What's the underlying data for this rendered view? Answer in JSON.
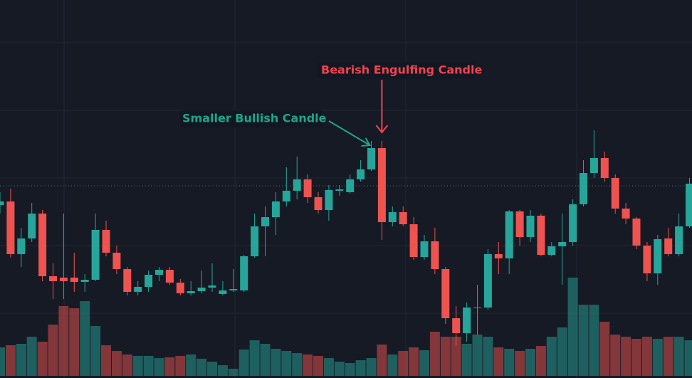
{
  "chart_data": {
    "type": "candlestick",
    "annotations": [
      {
        "text": "Bearish Engulfing Candle",
        "color": "#f0434f",
        "candle": 36
      },
      {
        "text": "Smaller Bullish Candle",
        "color": "#1fa58c",
        "candle": 35
      }
    ],
    "up_color": "#26a69a",
    "down_color": "#ef5350",
    "ylim": [
      0,
      531
    ],
    "vlim": [
      0,
      150
    ],
    "open": [
      243,
      248,
      174,
      196,
      231,
      143,
      141,
      141,
      135,
      138,
      208,
      176,
      153,
      121,
      128,
      145,
      152,
      134,
      119,
      122,
      127,
      118,
      123,
      123,
      171,
      213,
      226,
      248,
      263,
      279,
      254,
      236,
      263,
      261,
      279,
      293,
      323,
      219,
      233,
      216,
      170,
      192,
      153,
      84,
      63,
      98,
      99,
      174,
      168,
      234,
      198,
      228,
      173,
      185,
      191,
      244,
      288,
      309,
      281,
      238,
      224,
      186,
      147,
      196,
      174,
      213
    ],
    "high": [
      261,
      266,
      211,
      246,
      236,
      161,
      231,
      176,
      146,
      231,
      221,
      186,
      156,
      136,
      151,
      156,
      156,
      139,
      136,
      151,
      161,
      136,
      153,
      173,
      231,
      241,
      261,
      296,
      311,
      286,
      261,
      271,
      271,
      286,
      306,
      333,
      333,
      241,
      241,
      226,
      201,
      211,
      156,
      101,
      106,
      131,
      181,
      191,
      236,
      236,
      236,
      231,
      191,
      231,
      251,
      306,
      348,
      318,
      286,
      246,
      226,
      191,
      201,
      211,
      231,
      281
    ],
    "low": [
      231,
      169,
      156,
      191,
      136,
      111,
      111,
      121,
      121,
      136,
      171,
      146,
      116,
      116,
      121,
      136,
      131,
      116,
      116,
      119,
      121,
      116,
      121,
      121,
      169,
      171,
      201,
      241,
      251,
      246,
      231,
      221,
      256,
      259,
      276,
      291,
      194,
      213,
      213,
      166,
      166,
      146,
      76,
      46,
      51,
      61,
      96,
      146,
      146,
      186,
      191,
      171,
      171,
      131,
      186,
      241,
      281,
      276,
      231,
      216,
      181,
      136,
      131,
      171,
      171,
      211
    ],
    "close": [
      248,
      174,
      196,
      231,
      143,
      136,
      136,
      135,
      138,
      208,
      176,
      153,
      121,
      128,
      145,
      152,
      134,
      119,
      122,
      127,
      130,
      123,
      125,
      171,
      213,
      226,
      248,
      263,
      279,
      254,
      236,
      264,
      265,
      279,
      293,
      323,
      219,
      233,
      216,
      170,
      192,
      153,
      84,
      63,
      99,
      99,
      174,
      168,
      234,
      198,
      228,
      173,
      185,
      191,
      244,
      288,
      309,
      281,
      238,
      224,
      186,
      147,
      195,
      174,
      213,
      273
    ],
    "volume": [
      40,
      43,
      45,
      55,
      48,
      72,
      98,
      95,
      105,
      70,
      43,
      35,
      30,
      28,
      28,
      25,
      26,
      28,
      30,
      24,
      20,
      15,
      10,
      37,
      50,
      45,
      38,
      35,
      32,
      30,
      28,
      25,
      20,
      18,
      22,
      25,
      44,
      30,
      35,
      40,
      36,
      62,
      55,
      55,
      45,
      58,
      55,
      40,
      38,
      35,
      38,
      42,
      55,
      68,
      138,
      100,
      100,
      76,
      58,
      55,
      52,
      55,
      52,
      55,
      55,
      50
    ]
  }
}
